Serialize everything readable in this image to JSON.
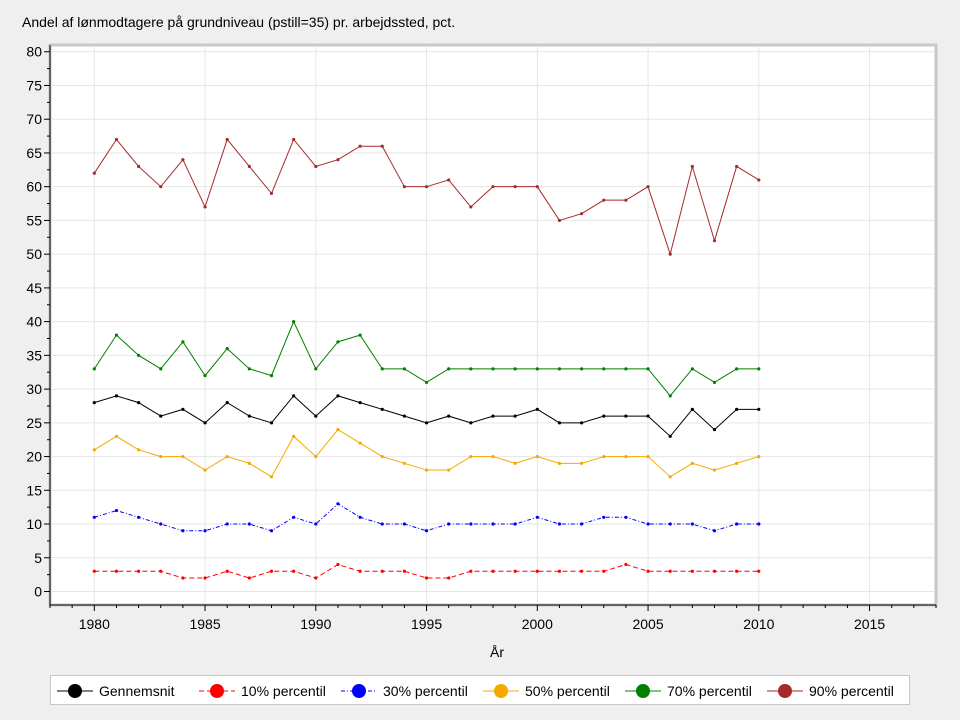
{
  "chart_data": {
    "type": "line",
    "title": "Andel af lønmodtagere på grundniveau (pstill=35) pr. arbejdssted, pct.",
    "xlabel": "År",
    "ylabel": "",
    "xlim": [
      1978,
      2018
    ],
    "ylim": [
      -2,
      81
    ],
    "xticks": [
      1980,
      1985,
      1990,
      1995,
      2000,
      2005,
      2010,
      2015
    ],
    "yticks": [
      0,
      5,
      10,
      15,
      20,
      25,
      30,
      35,
      40,
      45,
      50,
      55,
      60,
      65,
      70,
      75,
      80
    ],
    "grid": true,
    "legend_position": "bottom",
    "x": [
      1980,
      1981,
      1982,
      1983,
      1984,
      1985,
      1986,
      1987,
      1988,
      1989,
      1990,
      1991,
      1992,
      1993,
      1994,
      1995,
      1996,
      1997,
      1998,
      1999,
      2000,
      2001,
      2002,
      2003,
      2004,
      2005,
      2006,
      2007,
      2008,
      2009,
      2010
    ],
    "series": [
      {
        "name": "Gennemsnit",
        "color": "#000000",
        "dash": "",
        "values": [
          28,
          29,
          28,
          26,
          27,
          25,
          28,
          26,
          25,
          29,
          26,
          29,
          28,
          27,
          26,
          25,
          26,
          25,
          26,
          26,
          27,
          25,
          25,
          26,
          26,
          26,
          23,
          27,
          24,
          27,
          27
        ]
      },
      {
        "name": "10% percentil",
        "color": "#ff0000",
        "dash": "5,3",
        "values": [
          3,
          3,
          3,
          3,
          2,
          2,
          3,
          2,
          3,
          3,
          2,
          4,
          3,
          3,
          3,
          2,
          2,
          3,
          3,
          3,
          3,
          3,
          3,
          3,
          4,
          3,
          3,
          3,
          3,
          3,
          3
        ]
      },
      {
        "name": "30% percentil",
        "color": "#0000ff",
        "dash": "4,2,1,2",
        "values": [
          11,
          12,
          11,
          10,
          9,
          9,
          10,
          10,
          9,
          11,
          10,
          13,
          11,
          10,
          10,
          9,
          10,
          10,
          10,
          10,
          11,
          10,
          10,
          11,
          11,
          10,
          10,
          10,
          9,
          10,
          10
        ]
      },
      {
        "name": "50% percentil",
        "color": "#f5a800",
        "dash": "",
        "values": [
          21,
          23,
          21,
          20,
          20,
          18,
          20,
          19,
          17,
          23,
          20,
          24,
          22,
          20,
          19,
          18,
          18,
          20,
          20,
          19,
          20,
          19,
          19,
          20,
          20,
          20,
          17,
          19,
          18,
          19,
          20
        ]
      },
      {
        "name": "70% percentil",
        "color": "#008000",
        "dash": "",
        "values": [
          33,
          38,
          35,
          33,
          37,
          32,
          36,
          33,
          32,
          40,
          33,
          37,
          38,
          33,
          33,
          31,
          33,
          33,
          33,
          33,
          33,
          33,
          33,
          33,
          33,
          33,
          29,
          33,
          31,
          33,
          33
        ]
      },
      {
        "name": "90% percentil",
        "color": "#a52a2a",
        "dash": "",
        "values": [
          62,
          67,
          63,
          60,
          64,
          57,
          67,
          63,
          59,
          67,
          63,
          64,
          66,
          66,
          60,
          60,
          61,
          57,
          60,
          60,
          60,
          55,
          56,
          58,
          58,
          60,
          50,
          63,
          52,
          63,
          61
        ]
      }
    ]
  }
}
